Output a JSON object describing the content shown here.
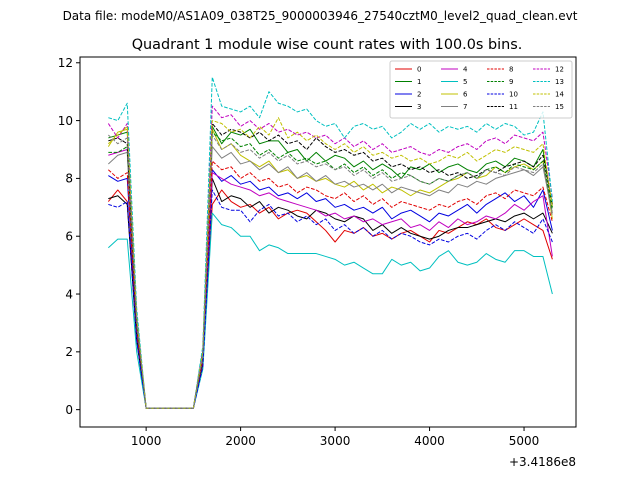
{
  "chart_data": {
    "type": "line",
    "suptitle": "Data file: modeM0/AS1A09_038T25_9000003946_27540cztM0_level2_quad_clean.evt",
    "title": "Quadrant 1 module wise count rates with 100.0s bins.",
    "offset_label": "+3.4186e8",
    "xlim": [
      300,
      5550
    ],
    "ylim": [
      -0.6,
      12.2
    ],
    "xticks": [
      1000,
      2000,
      3000,
      4000,
      5000
    ],
    "yticks": [
      0,
      2,
      4,
      6,
      8,
      10,
      12
    ],
    "legend_position": "upper right",
    "x": [
      600,
      700,
      800,
      900,
      1000,
      1100,
      1200,
      1300,
      1400,
      1500,
      1600,
      1700,
      1800,
      1900,
      2000,
      2100,
      2200,
      2300,
      2400,
      2500,
      2600,
      2700,
      2800,
      2900,
      3000,
      3100,
      3200,
      3300,
      3400,
      3500,
      3600,
      3700,
      3800,
      3900,
      4000,
      4100,
      4200,
      4300,
      4400,
      4500,
      4600,
      4700,
      4800,
      4900,
      5000,
      5100,
      5200,
      5300
    ],
    "series": [
      {
        "name": "0",
        "color": "#e00000",
        "dash": "solid",
        "values": [
          7.2,
          7.6,
          7.2,
          2.5,
          0.05,
          0.05,
          0.05,
          0.05,
          0.05,
          0.05,
          1.6,
          7.1,
          7.6,
          7.2,
          7.0,
          7.1,
          6.8,
          7.0,
          6.6,
          6.8,
          6.9,
          6.8,
          6.5,
          6.2,
          5.8,
          6.2,
          6.1,
          6.3,
          6.0,
          6.1,
          5.9,
          6.1,
          6.2,
          6.0,
          5.8,
          6.2,
          6.1,
          6.3,
          6.5,
          6.4,
          6.6,
          6.3,
          6.2,
          6.4,
          6.6,
          6.4,
          6.2,
          5.2
        ]
      },
      {
        "name": "1",
        "color": "#008000",
        "dash": "solid",
        "values": [
          9.4,
          9.5,
          9.6,
          3.2,
          0.05,
          0.05,
          0.05,
          0.05,
          0.05,
          0.05,
          2.0,
          9.8,
          9.2,
          9.6,
          9.5,
          9.7,
          9.2,
          9.3,
          9.3,
          8.9,
          9.0,
          8.6,
          8.9,
          8.6,
          8.8,
          8.7,
          8.4,
          8.6,
          8.3,
          8.5,
          8.3,
          8.0,
          8.4,
          8.3,
          8.5,
          8.2,
          8.4,
          8.5,
          8.3,
          8.2,
          8.5,
          8.6,
          8.4,
          8.7,
          8.6,
          8.4,
          9.0,
          7.0
        ]
      },
      {
        "name": "2",
        "color": "#0000e0",
        "dash": "solid",
        "values": [
          8.1,
          7.9,
          8.0,
          2.7,
          0.05,
          0.05,
          0.05,
          0.05,
          0.05,
          0.05,
          1.7,
          8.3,
          7.9,
          8.1,
          7.8,
          7.9,
          7.6,
          7.7,
          7.4,
          7.5,
          7.3,
          7.5,
          7.2,
          7.3,
          7.0,
          7.1,
          6.9,
          7.0,
          6.8,
          7.0,
          6.6,
          6.8,
          6.9,
          6.7,
          6.5,
          6.8,
          6.7,
          6.9,
          7.1,
          6.8,
          7.1,
          7.3,
          7.5,
          7.2,
          7.4,
          7.0,
          7.6,
          6.2
        ]
      },
      {
        "name": "3",
        "color": "#000000",
        "dash": "solid",
        "values": [
          7.3,
          7.4,
          7.1,
          2.4,
          0.05,
          0.05,
          0.05,
          0.05,
          0.05,
          0.05,
          1.6,
          8.0,
          7.2,
          7.4,
          7.3,
          7.0,
          7.2,
          6.8,
          7.0,
          6.9,
          6.7,
          6.6,
          6.9,
          6.8,
          6.6,
          6.5,
          6.7,
          6.6,
          6.2,
          6.4,
          6.1,
          6.3,
          6.1,
          6.0,
          5.9,
          6.0,
          6.2,
          6.3,
          6.3,
          6.4,
          6.5,
          6.6,
          6.5,
          6.7,
          6.8,
          6.6,
          6.8,
          6.1
        ]
      },
      {
        "name": "4",
        "color": "#c000c0",
        "dash": "solid",
        "values": [
          8.8,
          8.9,
          9.0,
          2.9,
          0.05,
          0.05,
          0.05,
          0.05,
          0.05,
          0.05,
          1.8,
          8.2,
          8.0,
          7.8,
          7.7,
          7.6,
          7.4,
          7.5,
          7.3,
          7.2,
          7.1,
          7.0,
          6.9,
          6.7,
          6.8,
          6.6,
          6.7,
          6.5,
          6.6,
          6.4,
          6.5,
          6.6,
          6.3,
          6.4,
          6.2,
          6.5,
          6.3,
          6.6,
          6.4,
          6.5,
          6.7,
          6.6,
          6.8,
          7.1,
          6.9,
          7.2,
          7.4,
          5.3
        ]
      },
      {
        "name": "5",
        "color": "#00c0c0",
        "dash": "solid",
        "values": [
          5.6,
          5.9,
          5.9,
          2.0,
          0.05,
          0.05,
          0.05,
          0.05,
          0.05,
          0.05,
          1.4,
          6.8,
          6.4,
          6.3,
          6.0,
          6.0,
          5.5,
          5.7,
          5.6,
          5.4,
          5.4,
          5.4,
          5.4,
          5.3,
          5.2,
          5.0,
          5.1,
          4.9,
          4.7,
          4.7,
          5.2,
          5.0,
          5.1,
          4.8,
          4.9,
          5.3,
          5.5,
          5.1,
          5.0,
          5.1,
          5.4,
          5.2,
          5.1,
          5.5,
          5.5,
          5.3,
          5.3,
          4.0
        ]
      },
      {
        "name": "6",
        "color": "#c0c000",
        "dash": "solid",
        "values": [
          9.1,
          9.6,
          9.7,
          3.1,
          0.05,
          0.05,
          0.05,
          0.05,
          0.05,
          0.05,
          1.9,
          9.7,
          9.0,
          9.2,
          8.8,
          8.6,
          8.4,
          8.6,
          8.2,
          8.3,
          8.0,
          8.1,
          7.9,
          8.0,
          7.8,
          7.7,
          7.9,
          7.6,
          7.8,
          7.5,
          7.7,
          7.6,
          7.4,
          7.6,
          7.5,
          7.7,
          7.9,
          8.0,
          8.2,
          8.0,
          8.1,
          8.4,
          8.2,
          8.4,
          8.5,
          8.3,
          8.6,
          6.6
        ]
      },
      {
        "name": "7",
        "color": "#808080",
        "dash": "solid",
        "values": [
          8.5,
          8.8,
          8.9,
          2.9,
          0.05,
          0.05,
          0.05,
          0.05,
          0.05,
          0.05,
          1.8,
          9.1,
          8.7,
          8.9,
          8.5,
          8.6,
          8.3,
          8.5,
          8.2,
          8.4,
          8.0,
          8.2,
          7.9,
          8.1,
          7.8,
          7.9,
          7.7,
          7.8,
          7.6,
          7.8,
          7.5,
          7.7,
          7.6,
          7.5,
          7.4,
          7.6,
          7.5,
          7.8,
          7.7,
          7.9,
          7.8,
          8.0,
          8.1,
          8.2,
          8.3,
          8.1,
          8.4,
          6.8
        ]
      },
      {
        "name": "8",
        "color": "#e00000",
        "dash": "dashed",
        "values": [
          8.3,
          8.0,
          8.2,
          2.7,
          0.05,
          0.05,
          0.05,
          0.05,
          0.05,
          0.05,
          1.7,
          8.6,
          8.3,
          8.4,
          8.0,
          8.2,
          7.9,
          8.0,
          7.7,
          7.8,
          7.5,
          7.7,
          7.6,
          7.4,
          7.3,
          7.5,
          7.2,
          7.4,
          7.1,
          7.3,
          7.0,
          7.2,
          7.1,
          7.0,
          6.9,
          7.1,
          7.0,
          7.2,
          7.3,
          7.1,
          7.4,
          7.5,
          7.3,
          7.6,
          7.5,
          7.4,
          7.7,
          6.5
        ]
      },
      {
        "name": "9",
        "color": "#008000",
        "dash": "dashed",
        "values": [
          8.9,
          8.9,
          9.1,
          3.0,
          0.05,
          0.05,
          0.05,
          0.05,
          0.05,
          0.05,
          1.9,
          9.6,
          9.3,
          9.4,
          9.1,
          9.2,
          8.8,
          9.0,
          8.7,
          8.9,
          8.6,
          8.7,
          8.5,
          8.6,
          8.3,
          8.5,
          8.2,
          8.4,
          8.1,
          8.3,
          8.0,
          8.2,
          8.1,
          7.9,
          7.8,
          8.0,
          7.9,
          8.1,
          8.2,
          8.0,
          8.3,
          8.4,
          8.2,
          8.5,
          8.4,
          8.3,
          8.6,
          6.9
        ]
      },
      {
        "name": "10",
        "color": "#0000e0",
        "dash": "dashed",
        "values": [
          7.1,
          7.0,
          7.2,
          2.4,
          0.05,
          0.05,
          0.05,
          0.05,
          0.05,
          0.05,
          1.5,
          7.6,
          7.0,
          6.9,
          6.9,
          6.5,
          6.9,
          7.1,
          6.7,
          6.8,
          6.5,
          6.7,
          6.4,
          6.6,
          6.2,
          6.4,
          6.1,
          6.3,
          6.0,
          6.2,
          5.9,
          6.1,
          6.0,
          5.8,
          5.7,
          5.9,
          5.8,
          6.0,
          6.1,
          5.9,
          6.2,
          6.4,
          6.2,
          6.5,
          6.3,
          6.1,
          6.6,
          5.8
        ]
      },
      {
        "name": "11",
        "color": "#000000",
        "dash": "dashed",
        "values": [
          9.3,
          9.4,
          9.2,
          3.1,
          0.05,
          0.05,
          0.05,
          0.05,
          0.05,
          0.05,
          2.0,
          9.9,
          9.5,
          9.7,
          9.6,
          9.4,
          9.6,
          9.3,
          9.5,
          9.2,
          9.3,
          9.0,
          9.4,
          9.1,
          8.9,
          9.0,
          8.8,
          8.9,
          8.6,
          8.7,
          8.4,
          8.5,
          8.3,
          8.4,
          8.2,
          8.3,
          8.1,
          8.2,
          8.0,
          8.1,
          8.3,
          8.2,
          8.4,
          8.5,
          8.6,
          8.4,
          8.8,
          7.1
        ]
      },
      {
        "name": "12",
        "color": "#c000c0",
        "dash": "dashed",
        "values": [
          9.9,
          9.4,
          9.9,
          3.3,
          0.05,
          0.05,
          0.05,
          0.05,
          0.05,
          0.05,
          2.1,
          10.5,
          10.1,
          10.2,
          9.8,
          10.0,
          9.7,
          9.9,
          9.6,
          9.7,
          9.5,
          9.6,
          9.4,
          9.5,
          9.2,
          9.4,
          9.1,
          9.3,
          9.0,
          9.2,
          8.9,
          9.0,
          9.1,
          8.9,
          8.8,
          9.0,
          8.9,
          9.1,
          9.2,
          9.0,
          9.3,
          9.4,
          9.2,
          9.5,
          9.4,
          9.3,
          9.6,
          7.3
        ]
      },
      {
        "name": "13",
        "color": "#00c0c0",
        "dash": "dashed",
        "values": [
          10.1,
          10.0,
          10.6,
          3.5,
          0.05,
          0.05,
          0.05,
          0.05,
          0.05,
          0.05,
          2.2,
          11.5,
          10.5,
          10.4,
          10.3,
          10.5,
          10.1,
          11.0,
          10.6,
          10.5,
          10.3,
          10.4,
          10.0,
          9.8,
          9.9,
          9.4,
          9.8,
          9.9,
          9.7,
          9.8,
          9.4,
          9.6,
          9.9,
          9.7,
          9.9,
          9.6,
          9.8,
          9.7,
          9.8,
          9.6,
          9.9,
          9.7,
          9.9,
          9.8,
          9.5,
          9.6,
          10.3,
          7.2
        ]
      },
      {
        "name": "14",
        "color": "#c0c000",
        "dash": "dashed",
        "values": [
          9.2,
          9.5,
          9.8,
          3.2,
          0.05,
          0.05,
          0.05,
          0.05,
          0.05,
          0.05,
          2.0,
          10.0,
          9.9,
          9.6,
          9.7,
          9.4,
          9.8,
          9.5,
          10.1,
          9.4,
          9.6,
          9.3,
          9.5,
          9.2,
          9.0,
          9.2,
          8.9,
          9.1,
          8.8,
          8.9,
          8.7,
          8.8,
          8.6,
          8.7,
          8.5,
          8.6,
          8.8,
          8.7,
          8.9,
          8.6,
          8.8,
          9.0,
          8.9,
          9.1,
          9.0,
          8.9,
          9.2,
          7.0
        ]
      },
      {
        "name": "15",
        "color": "#808080",
        "dash": "dashed",
        "values": [
          9.5,
          9.2,
          9.4,
          3.1,
          0.05,
          0.05,
          0.05,
          0.05,
          0.05,
          0.05,
          1.9,
          9.5,
          9.0,
          9.2,
          8.9,
          9.0,
          8.7,
          8.9,
          8.6,
          8.8,
          8.5,
          8.6,
          8.4,
          8.5,
          8.3,
          8.4,
          8.1,
          8.3,
          8.0,
          8.2,
          7.9,
          8.0,
          8.1,
          7.9,
          7.8,
          8.0,
          7.9,
          8.1,
          8.2,
          8.0,
          8.3,
          8.2,
          8.1,
          8.4,
          8.3,
          8.2,
          8.5,
          6.7
        ]
      }
    ]
  }
}
